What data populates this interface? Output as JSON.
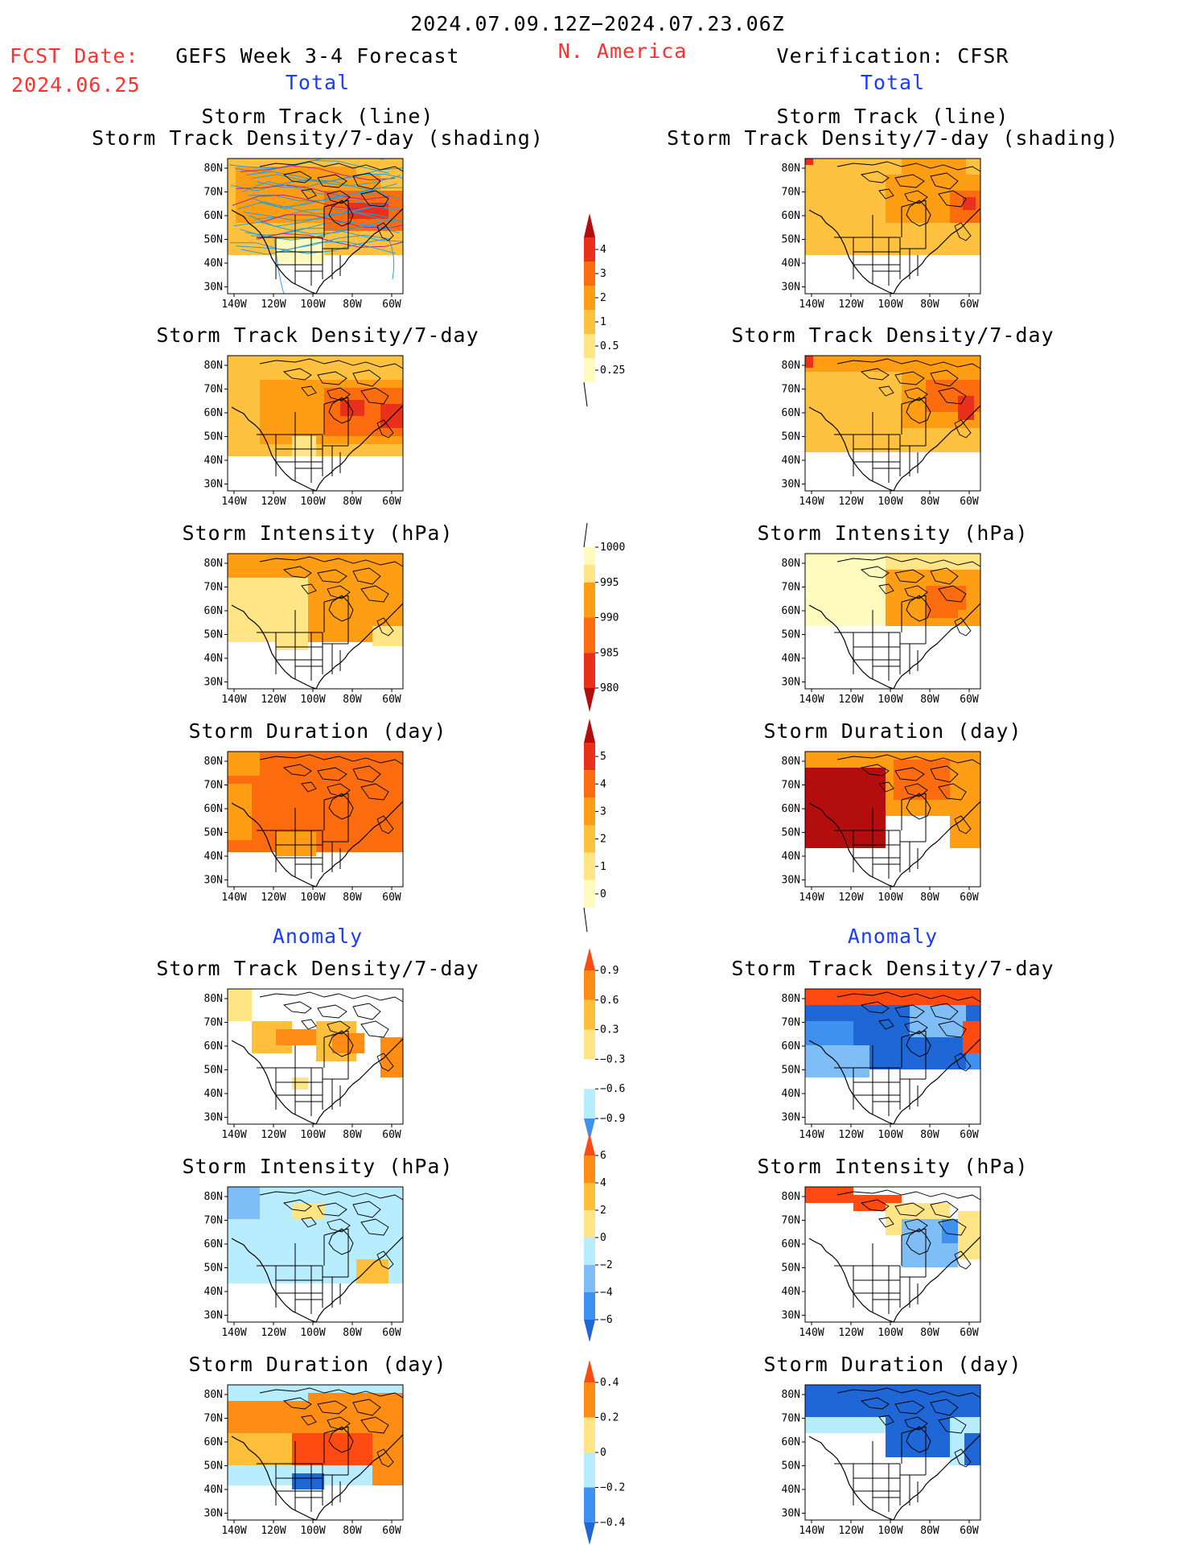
{
  "header": {
    "date_range": "2024.07.09.12Z−2024.07.23.06Z",
    "fcst_label": "FCST Date:",
    "fcst_date": "2024.06.25",
    "left_title": "GEFS Week 3-4 Forecast",
    "region": "N. America",
    "right_title": "Verification: CFSR",
    "total_label": "Total",
    "anomaly_label": "Anomaly"
  },
  "axes": {
    "lat_labels": [
      "80N",
      "70N",
      "60N",
      "50N",
      "40N",
      "30N"
    ],
    "lon_labels": [
      "140W",
      "120W",
      "100W",
      "80W",
      "60W"
    ]
  },
  "colors": {
    "density": [
      "#fffbbf",
      "#ffe585",
      "#ffc240",
      "#ff9d14",
      "#fd6d0f",
      "#e8301b",
      "#b40d0d"
    ],
    "intensity": [
      "#b40d0d",
      "#e8301b",
      "#fd6d0f",
      "#ff9d14",
      "#ffe585",
      "#fffbbf"
    ],
    "duration": [
      "#fffbbf",
      "#ffe585",
      "#ffc240",
      "#ff9d14",
      "#fd6d0f",
      "#e8301b",
      "#b40d0d"
    ],
    "anom": [
      "#1f66d6",
      "#3f91f0",
      "#7fbdf6",
      "#b8ecff",
      "#ffffff",
      "#ffe585",
      "#ffbf3a",
      "#ff8c14",
      "#ff4b12"
    ],
    "track_lines": "#2a9fd6",
    "track_density_lines": "#c02080"
  },
  "chart_data": [
    {
      "type": "heatmap",
      "id": "fc-track",
      "column": "GEFS Week 3-4 Forecast",
      "section": "Total",
      "title": "Storm Track (line)",
      "subtitle": "Storm Track Density/7-day (shading)",
      "variable": "Storm Track Density/7-day",
      "overlay": "Storm Track (line)",
      "lat": [
        80,
        70,
        60,
        50,
        40,
        30
      ],
      "lon": [
        -140,
        -120,
        -100,
        -80,
        -60
      ],
      "colorbar": [
        0.25,
        0.5,
        1,
        2,
        3,
        4
      ]
    },
    {
      "type": "heatmap",
      "id": "vf-track",
      "column": "Verification: CFSR",
      "section": "Total",
      "title": "Storm Track (line)",
      "subtitle": "Storm Track Density/7-day (shading)",
      "variable": "Storm Track Density/7-day",
      "overlay": "Storm Track (line)",
      "lat": [
        80,
        70,
        60,
        50,
        40,
        30
      ],
      "lon": [
        -140,
        -120,
        -100,
        -80,
        -60
      ],
      "colorbar": [
        0.25,
        0.5,
        1,
        2,
        3,
        4
      ]
    },
    {
      "type": "heatmap",
      "id": "fc-density",
      "column": "GEFS Week 3-4 Forecast",
      "section": "Total",
      "title": "Storm Track Density/7-day",
      "variable": "Storm Track Density/7-day",
      "lat": [
        80,
        70,
        60,
        50,
        40,
        30
      ],
      "lon": [
        -140,
        -120,
        -100,
        -80,
        -60
      ],
      "colorbar": [
        0.25,
        0.5,
        1,
        2,
        3,
        4
      ]
    },
    {
      "type": "heatmap",
      "id": "vf-density",
      "column": "Verification: CFSR",
      "section": "Total",
      "title": "Storm Track Density/7-day",
      "variable": "Storm Track Density/7-day",
      "lat": [
        80,
        70,
        60,
        50,
        40,
        30
      ],
      "lon": [
        -140,
        -120,
        -100,
        -80,
        -60
      ],
      "colorbar": [
        0.25,
        0.5,
        1,
        2,
        3,
        4
      ]
    },
    {
      "type": "heatmap",
      "id": "fc-intensity",
      "column": "GEFS Week 3-4 Forecast",
      "section": "Total",
      "title": "Storm Intensity (hPa)",
      "variable": "Storm Intensity (hPa)",
      "lat": [
        80,
        70,
        60,
        50,
        40,
        30
      ],
      "lon": [
        -140,
        -120,
        -100,
        -80,
        -60
      ],
      "colorbar": [
        1000,
        995,
        990,
        985,
        980
      ]
    },
    {
      "type": "heatmap",
      "id": "vf-intensity",
      "column": "Verification: CFSR",
      "section": "Total",
      "title": "Storm Intensity (hPa)",
      "variable": "Storm Intensity (hPa)",
      "lat": [
        80,
        70,
        60,
        50,
        40,
        30
      ],
      "lon": [
        -140,
        -120,
        -100,
        -80,
        -60
      ],
      "colorbar": [
        1000,
        995,
        990,
        985,
        980
      ]
    },
    {
      "type": "heatmap",
      "id": "fc-duration",
      "column": "GEFS Week 3-4 Forecast",
      "section": "Total",
      "title": "Storm Duration (day)",
      "variable": "Storm Duration (day)",
      "lat": [
        80,
        70,
        60,
        50,
        40,
        30
      ],
      "lon": [
        -140,
        -120,
        -100,
        -80,
        -60
      ],
      "colorbar": [
        0,
        1,
        2,
        3,
        4,
        5
      ]
    },
    {
      "type": "heatmap",
      "id": "vf-duration",
      "column": "Verification: CFSR",
      "section": "Total",
      "title": "Storm Duration (day)",
      "variable": "Storm Duration (day)",
      "lat": [
        80,
        70,
        60,
        50,
        40,
        30
      ],
      "lon": [
        -140,
        -120,
        -100,
        -80,
        -60
      ],
      "colorbar": [
        0,
        1,
        2,
        3,
        4,
        5
      ]
    },
    {
      "type": "heatmap",
      "id": "fc-adensity",
      "column": "GEFS Week 3-4 Forecast",
      "section": "Anomaly",
      "title": "Storm Track Density/7-day",
      "variable": "Storm Track Density/7-day anomaly",
      "lat": [
        80,
        70,
        60,
        50,
        40,
        30
      ],
      "lon": [
        -140,
        -120,
        -100,
        -80,
        -60
      ],
      "colorbar": [
        0.9,
        0.6,
        0.3,
        -0.3,
        -0.6,
        -0.9
      ]
    },
    {
      "type": "heatmap",
      "id": "vf-adensity",
      "column": "Verification: CFSR",
      "section": "Anomaly",
      "title": "Storm Track Density/7-day",
      "variable": "Storm Track Density/7-day anomaly",
      "lat": [
        80,
        70,
        60,
        50,
        40,
        30
      ],
      "lon": [
        -140,
        -120,
        -100,
        -80,
        -60
      ],
      "colorbar": [
        0.9,
        0.6,
        0.3,
        -0.3,
        -0.6,
        -0.9
      ]
    },
    {
      "type": "heatmap",
      "id": "fc-aintensity",
      "column": "GEFS Week 3-4 Forecast",
      "section": "Anomaly",
      "title": "Storm Intensity (hPa)",
      "variable": "Storm Intensity (hPa) anomaly",
      "lat": [
        80,
        70,
        60,
        50,
        40,
        30
      ],
      "lon": [
        -140,
        -120,
        -100,
        -80,
        -60
      ],
      "colorbar": [
        6,
        4,
        2,
        0,
        -2,
        -4,
        -6
      ]
    },
    {
      "type": "heatmap",
      "id": "vf-aintensity",
      "column": "Verification: CFSR",
      "section": "Anomaly",
      "title": "Storm Intensity (hPa)",
      "variable": "Storm Intensity (hPa) anomaly",
      "lat": [
        80,
        70,
        60,
        50,
        40,
        30
      ],
      "lon": [
        -140,
        -120,
        -100,
        -80,
        -60
      ],
      "colorbar": [
        6,
        4,
        2,
        0,
        -2,
        -4,
        -6
      ]
    },
    {
      "type": "heatmap",
      "id": "fc-aduration",
      "column": "GEFS Week 3-4 Forecast",
      "section": "Anomaly",
      "title": "Storm Duration (day)",
      "variable": "Storm Duration (day) anomaly",
      "lat": [
        80,
        70,
        60,
        50,
        40,
        30
      ],
      "lon": [
        -140,
        -120,
        -100,
        -80,
        -60
      ],
      "colorbar": [
        0.4,
        0.2,
        0,
        -0.2,
        -0.4
      ]
    },
    {
      "type": "heatmap",
      "id": "vf-aduration",
      "column": "Verification: CFSR",
      "section": "Anomaly",
      "title": "Storm Duration (day)",
      "variable": "Storm Duration (day) anomaly",
      "lat": [
        80,
        70,
        60,
        50,
        40,
        30
      ],
      "lon": [
        -140,
        -120,
        -100,
        -80,
        -60
      ],
      "colorbar": [
        0.4,
        0.2,
        0,
        -0.2,
        -0.4
      ]
    }
  ]
}
